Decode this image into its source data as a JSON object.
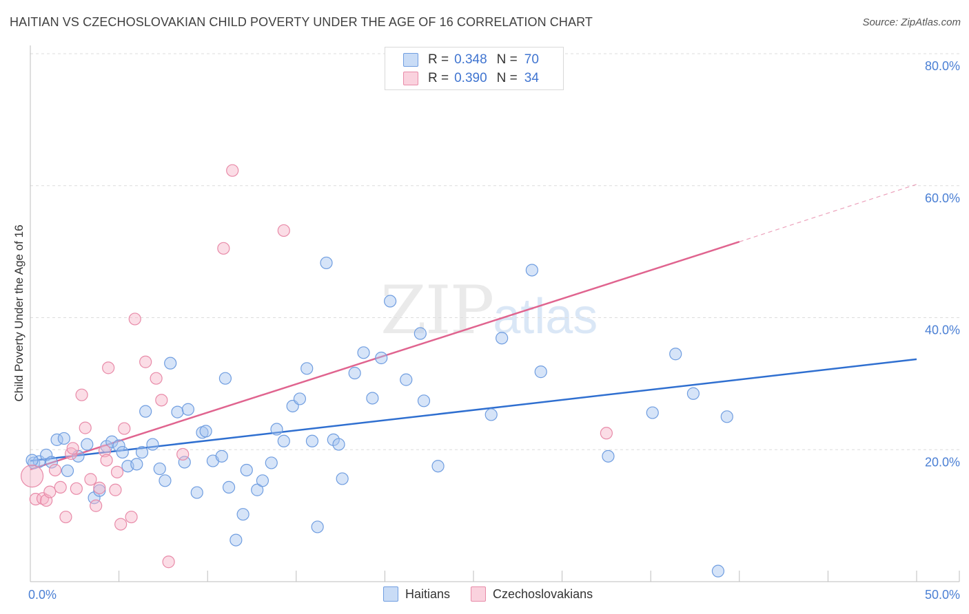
{
  "header": {
    "title": "HAITIAN VS CZECHOSLOVAKIAN CHILD POVERTY UNDER THE AGE OF 16 CORRELATION CHART",
    "source": "Source: ZipAtlas.com"
  },
  "watermark": {
    "zip": "ZIP",
    "atlas": "atlas"
  },
  "colors": {
    "haitian_fill": "rgba(165,196,240,0.45)",
    "haitian_stroke": "#6f9de0",
    "haitian_line": "#2f6fd0",
    "czech_fill": "rgba(247,180,200,0.45)",
    "czech_stroke": "#e88aa8",
    "czech_line": "#e0648f",
    "grid": "#dcdcdc",
    "tick_text": "#4a7fd4"
  },
  "legend": {
    "rows": [
      {
        "r_label": "R =",
        "r_value": "0.348",
        "n_label": "N =",
        "n_value": "70"
      },
      {
        "r_label": "R =",
        "r_value": "0.390",
        "n_label": "N =",
        "n_value": "34"
      }
    ],
    "bottom": [
      {
        "label": "Haitians"
      },
      {
        "label": "Czechoslovakians"
      }
    ]
  },
  "chart_data": {
    "type": "scatter",
    "title": "HAITIAN VS CZECHOSLOVAKIAN CHILD POVERTY UNDER THE AGE OF 16 CORRELATION CHART",
    "xlabel": "",
    "ylabel": "Child Poverty Under the Age of 16",
    "xlim": [
      0,
      50
    ],
    "ylim": [
      0,
      80
    ],
    "x_tick_labels": [
      "0.0%",
      "50.0%"
    ],
    "y_ticks": [
      20,
      40,
      60,
      80
    ],
    "y_tick_labels": [
      "20.0%",
      "40.0%",
      "60.0%",
      "80.0%"
    ],
    "grid": true,
    "series": [
      {
        "name": "Haitians",
        "r": 0.348,
        "n": 70,
        "trend": {
          "x0": 0,
          "y0": 18.3,
          "x1": 50,
          "y1": 33.7
        },
        "points": [
          [
            0.2,
            18.0
          ],
          [
            0.5,
            18.2
          ],
          [
            0.9,
            19.2
          ],
          [
            1.2,
            18.1
          ],
          [
            1.5,
            21.5
          ],
          [
            1.9,
            21.7
          ],
          [
            2.1,
            16.8
          ],
          [
            2.7,
            19.0
          ],
          [
            3.2,
            20.8
          ],
          [
            3.6,
            12.7
          ],
          [
            3.9,
            13.8
          ],
          [
            4.3,
            20.5
          ],
          [
            4.6,
            21.2
          ],
          [
            5.0,
            20.6
          ],
          [
            5.2,
            19.6
          ],
          [
            5.5,
            17.5
          ],
          [
            6.0,
            17.8
          ],
          [
            6.3,
            19.6
          ],
          [
            6.5,
            25.8
          ],
          [
            6.9,
            20.8
          ],
          [
            7.3,
            17.1
          ],
          [
            7.6,
            15.3
          ],
          [
            7.9,
            33.1
          ],
          [
            8.3,
            25.7
          ],
          [
            8.7,
            18.1
          ],
          [
            8.9,
            26.1
          ],
          [
            9.4,
            13.5
          ],
          [
            9.7,
            22.6
          ],
          [
            9.9,
            22.8
          ],
          [
            10.3,
            18.3
          ],
          [
            10.8,
            19.0
          ],
          [
            11.0,
            30.8
          ],
          [
            11.2,
            14.3
          ],
          [
            11.6,
            6.3
          ],
          [
            12.0,
            10.2
          ],
          [
            12.2,
            16.9
          ],
          [
            12.8,
            13.9
          ],
          [
            13.1,
            15.3
          ],
          [
            13.6,
            18.0
          ],
          [
            13.9,
            23.1
          ],
          [
            14.3,
            21.3
          ],
          [
            14.8,
            26.6
          ],
          [
            15.2,
            27.7
          ],
          [
            15.6,
            32.3
          ],
          [
            15.9,
            21.3
          ],
          [
            16.2,
            8.3
          ],
          [
            16.7,
            48.3
          ],
          [
            17.1,
            21.5
          ],
          [
            17.4,
            20.8
          ],
          [
            17.6,
            15.6
          ],
          [
            18.3,
            31.6
          ],
          [
            18.8,
            34.7
          ],
          [
            19.3,
            27.8
          ],
          [
            19.8,
            33.9
          ],
          [
            20.3,
            42.5
          ],
          [
            21.2,
            30.6
          ],
          [
            22.0,
            37.6
          ],
          [
            22.2,
            27.4
          ],
          [
            23.0,
            17.5
          ],
          [
            26.0,
            25.3
          ],
          [
            26.6,
            36.9
          ],
          [
            28.3,
            47.2
          ],
          [
            28.8,
            31.8
          ],
          [
            32.6,
            19.0
          ],
          [
            35.1,
            25.6
          ],
          [
            36.4,
            34.5
          ],
          [
            37.4,
            28.5
          ],
          [
            38.8,
            1.6
          ],
          [
            39.3,
            25.0
          ],
          [
            0.1,
            18.4
          ]
        ]
      },
      {
        "name": "Czechoslovakians",
        "r": 0.39,
        "n": 34,
        "trend": {
          "x0": 0,
          "y0": 17.0,
          "x1": 40,
          "y1": 51.5,
          "dashed_to_x": 50,
          "dashed_to_y": 60.2
        },
        "points": [
          [
            0.1,
            16.0
          ],
          [
            0.3,
            12.5
          ],
          [
            0.7,
            12.6
          ],
          [
            0.9,
            12.3
          ],
          [
            1.1,
            13.6
          ],
          [
            1.4,
            16.9
          ],
          [
            1.7,
            14.3
          ],
          [
            2.0,
            9.8
          ],
          [
            2.3,
            19.4
          ],
          [
            2.4,
            20.2
          ],
          [
            2.6,
            14.1
          ],
          [
            2.9,
            28.3
          ],
          [
            3.1,
            23.3
          ],
          [
            3.4,
            15.5
          ],
          [
            3.7,
            11.5
          ],
          [
            3.9,
            14.2
          ],
          [
            4.2,
            19.8
          ],
          [
            4.3,
            18.4
          ],
          [
            4.4,
            32.4
          ],
          [
            4.8,
            13.9
          ],
          [
            4.9,
            16.6
          ],
          [
            5.1,
            8.7
          ],
          [
            5.3,
            23.2
          ],
          [
            5.7,
            9.8
          ],
          [
            5.9,
            39.8
          ],
          [
            6.5,
            33.3
          ],
          [
            7.1,
            30.8
          ],
          [
            7.4,
            27.5
          ],
          [
            7.8,
            3.0
          ],
          [
            8.6,
            19.3
          ],
          [
            10.9,
            50.5
          ],
          [
            11.4,
            62.3
          ],
          [
            14.3,
            53.2
          ],
          [
            32.5,
            22.5
          ]
        ]
      }
    ]
  }
}
